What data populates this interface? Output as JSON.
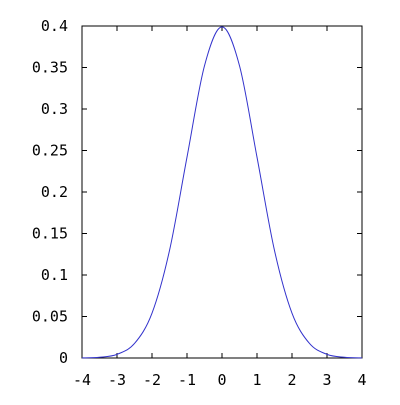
{
  "chart_data": {
    "type": "line",
    "title": "",
    "xlabel": "",
    "ylabel": "",
    "xlim": [
      -4,
      4
    ],
    "ylim": [
      0,
      0.4
    ],
    "grid": false,
    "x_ticks": [
      -4,
      -3,
      -2,
      -1,
      0,
      1,
      2,
      3,
      4
    ],
    "x_tick_labels": [
      "-4",
      "-3",
      "-2",
      "-1",
      "0",
      "1",
      "2",
      "3",
      "4"
    ],
    "y_ticks": [
      0,
      0.05,
      0.1,
      0.15,
      0.2,
      0.25,
      0.3,
      0.35,
      0.4
    ],
    "y_tick_labels": [
      "0",
      "0.05",
      "0.1",
      "0.15",
      "0.2",
      "0.25",
      "0.3",
      "0.35",
      "0.4"
    ],
    "series": [
      {
        "color": "#3333cc",
        "x": [
          -4,
          -3.5,
          -3,
          -2.5,
          -2,
          -1.5,
          -1,
          -0.5,
          0,
          0.5,
          1,
          1.5,
          2,
          2.5,
          3,
          3.5,
          4
        ],
        "y": [
          0.0001,
          0.0009,
          0.0044,
          0.0175,
          0.054,
          0.1295,
          0.242,
          0.3521,
          0.3989,
          0.3521,
          0.242,
          0.1295,
          0.054,
          0.0175,
          0.0044,
          0.0009,
          0.0001
        ]
      }
    ]
  }
}
